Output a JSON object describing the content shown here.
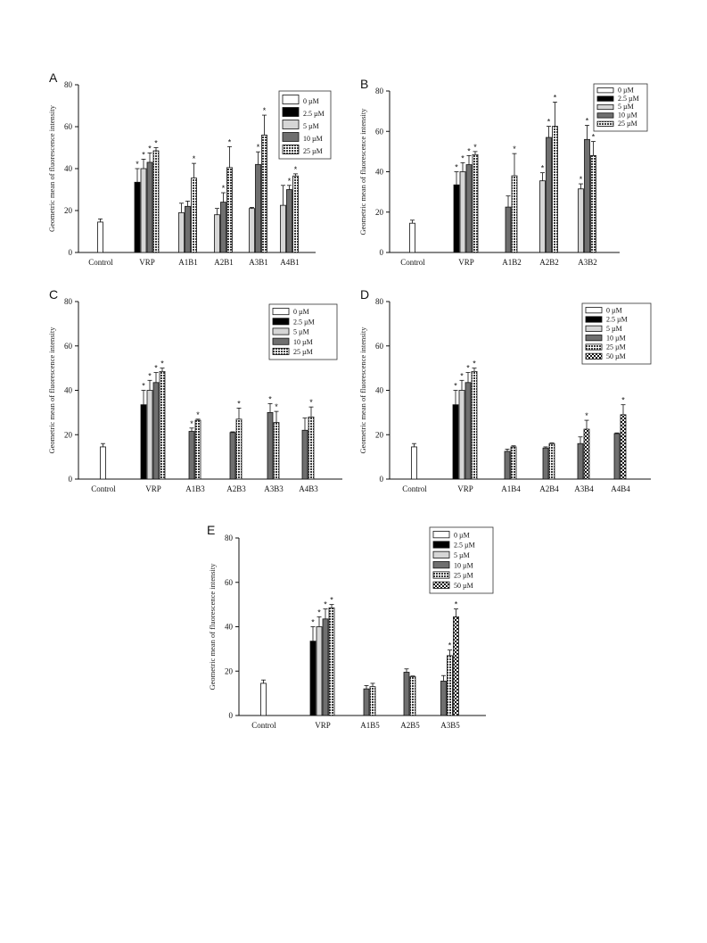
{
  "colors": {
    "c0": "#ffffff",
    "c2_5": "#000000",
    "c5": "#d6d6d6",
    "c10": "#6f6f6f",
    "c25": "pattern-dense-dots",
    "c50": "pattern-checker"
  },
  "chart_data": [
    {
      "type": "bar",
      "panel": "A",
      "ylabel": "Geometric mean of fluorescence intensity",
      "ylim": [
        0,
        80
      ],
      "yticks": [
        0,
        20,
        40,
        60,
        80
      ],
      "legend_position": "top-right",
      "legend": [
        "0 µM",
        "2.5 µM",
        "5 µM",
        "10 µM",
        "25 µM"
      ],
      "categories": [
        "Control",
        "VRP",
        "A1B1",
        "A2B1",
        "A3B1",
        "A4B1"
      ],
      "groups": [
        [
          {
            "s": 0,
            "v": 14.5,
            "e": 1.5,
            "star": false
          }
        ],
        [
          {
            "s": 1,
            "v": 33.5,
            "e": 6.5,
            "star": true
          },
          {
            "s": 2,
            "v": 40,
            "e": 4.5,
            "star": true
          },
          {
            "s": 3,
            "v": 43,
            "e": 4.5,
            "star": true
          },
          {
            "s": 4,
            "v": 48.5,
            "e": 1.5,
            "star": true
          }
        ],
        [
          {
            "s": 2,
            "v": 19,
            "e": 4.5,
            "star": false
          },
          {
            "s": 3,
            "v": 22,
            "e": 2.5,
            "star": false
          },
          {
            "s": 4,
            "v": 35.5,
            "e": 7,
            "star": true
          }
        ],
        [
          {
            "s": 2,
            "v": 18,
            "e": 3,
            "star": false
          },
          {
            "s": 3,
            "v": 24,
            "e": 4.5,
            "star": true
          },
          {
            "s": 4,
            "v": 40.5,
            "e": 10,
            "star": true
          }
        ],
        [
          {
            "s": 2,
            "v": 21,
            "e": 0.5,
            "star": false
          },
          {
            "s": 3,
            "v": 42,
            "e": 6,
            "star": true
          },
          {
            "s": 4,
            "v": 56,
            "e": 9.5,
            "star": true
          }
        ],
        [
          {
            "s": 2,
            "v": 22.5,
            "e": 9.5,
            "star": false
          },
          {
            "s": 3,
            "v": 30,
            "e": 2,
            "star": true
          },
          {
            "s": 4,
            "v": 36.5,
            "e": 1,
            "star": true
          }
        ]
      ]
    },
    {
      "type": "bar",
      "panel": "B",
      "ylabel": "Geometric mean of fluorescence intensity",
      "ylim": [
        0,
        80
      ],
      "yticks": [
        0,
        20,
        40,
        60,
        80
      ],
      "legend_position": "top-right",
      "legend": [
        "0 µM",
        "2.5 µM",
        "5 µM",
        "10 µM",
        "25 µM"
      ],
      "categories": [
        "Control",
        "VRP",
        "A1B2",
        "A2B2",
        "A3B2"
      ],
      "groups": [
        [
          {
            "s": 0,
            "v": 14.5,
            "e": 1.5,
            "star": false
          }
        ],
        [
          {
            "s": 1,
            "v": 33.5,
            "e": 6.5,
            "star": true
          },
          {
            "s": 2,
            "v": 40,
            "e": 4.5,
            "star": true
          },
          {
            "s": 3,
            "v": 43.5,
            "e": 4.5,
            "star": true
          },
          {
            "s": 4,
            "v": 48.5,
            "e": 1.5,
            "star": true
          }
        ],
        [
          {
            "s": 3,
            "v": 22.5,
            "e": 5.5,
            "star": false
          },
          {
            "s": 4,
            "v": 38,
            "e": 11,
            "star": true
          }
        ],
        [
          {
            "s": 2,
            "v": 35.5,
            "e": 4,
            "star": true
          },
          {
            "s": 3,
            "v": 57,
            "e": 5.5,
            "star": true
          },
          {
            "s": 4,
            "v": 62.5,
            "e": 12,
            "star": true
          }
        ],
        [
          {
            "s": 2,
            "v": 31.5,
            "e": 2.5,
            "star": true
          },
          {
            "s": 3,
            "v": 56,
            "e": 7,
            "star": true
          },
          {
            "s": 4,
            "v": 48,
            "e": 7,
            "star": true
          }
        ]
      ]
    },
    {
      "type": "bar",
      "panel": "C",
      "ylabel": "Geometric mean of fluorescence intensity",
      "ylim": [
        0,
        80
      ],
      "yticks": [
        0,
        20,
        40,
        60,
        80
      ],
      "legend_position": "top-right",
      "legend": [
        "0 µM",
        "2.5 µM",
        "5 µM",
        "10 µM",
        "25 µM"
      ],
      "categories": [
        "Control",
        "VRP",
        "A1B3",
        "A2B3",
        "A3B3",
        "A4B3"
      ],
      "groups": [
        [
          {
            "s": 0,
            "v": 14.5,
            "e": 1.5,
            "star": false
          }
        ],
        [
          {
            "s": 1,
            "v": 33.5,
            "e": 6.5,
            "star": true
          },
          {
            "s": 2,
            "v": 40,
            "e": 4.5,
            "star": true
          },
          {
            "s": 3,
            "v": 43.5,
            "e": 4.5,
            "star": true
          },
          {
            "s": 4,
            "v": 48.5,
            "e": 1.5,
            "star": true
          }
        ],
        [
          {
            "s": 3,
            "v": 21.5,
            "e": 1.5,
            "star": true
          },
          {
            "s": 4,
            "v": 26.5,
            "e": 0.5,
            "star": true
          }
        ],
        [
          {
            "s": 3,
            "v": 21,
            "e": 0.3,
            "star": false
          },
          {
            "s": 4,
            "v": 27,
            "e": 5,
            "star": true
          }
        ],
        [
          {
            "s": 3,
            "v": 30,
            "e": 4,
            "star": true
          },
          {
            "s": 4,
            "v": 25.5,
            "e": 5,
            "star": true
          }
        ],
        [
          {
            "s": 3,
            "v": 22,
            "e": 5.5,
            "star": false
          },
          {
            "s": 4,
            "v": 28,
            "e": 4.5,
            "star": true
          }
        ]
      ]
    },
    {
      "type": "bar",
      "panel": "D",
      "ylabel": "Geometric mean of fluorescence intensity",
      "ylim": [
        0,
        80
      ],
      "yticks": [
        0,
        20,
        40,
        60,
        80
      ],
      "legend_position": "top-right",
      "legend": [
        "0 µM",
        "2.5 µM",
        "5 µM",
        "10 µM",
        "25 µM",
        "50 µM"
      ],
      "categories": [
        "Control",
        "VRP",
        "A1B4",
        "A2B4",
        "A3B4",
        "A4B4"
      ],
      "groups": [
        [
          {
            "s": 0,
            "v": 14.5,
            "e": 1.5,
            "star": false
          }
        ],
        [
          {
            "s": 1,
            "v": 33.5,
            "e": 6.5,
            "star": true
          },
          {
            "s": 2,
            "v": 40,
            "e": 4.5,
            "star": true
          },
          {
            "s": 3,
            "v": 43.5,
            "e": 4.5,
            "star": true
          },
          {
            "s": 4,
            "v": 48.5,
            "e": 1.5,
            "star": true
          }
        ],
        [
          {
            "s": 3,
            "v": 12.5,
            "e": 1,
            "star": false
          },
          {
            "s": 4,
            "v": 14.5,
            "e": 0.5,
            "star": false
          }
        ],
        [
          {
            "s": 3,
            "v": 14,
            "e": 0.5,
            "star": false
          },
          {
            "s": 4,
            "v": 16,
            "e": 0.3,
            "star": false
          }
        ],
        [
          {
            "s": 3,
            "v": 16,
            "e": 3,
            "star": false
          },
          {
            "s": 5,
            "v": 22.5,
            "e": 4,
            "star": true
          }
        ],
        [
          {
            "s": 3,
            "v": 20.5,
            "e": 0.3,
            "star": false
          },
          {
            "s": 5,
            "v": 29,
            "e": 4.5,
            "star": true
          }
        ]
      ]
    },
    {
      "type": "bar",
      "panel": "E",
      "ylabel": "Geometric mean of fluorescence intensity",
      "ylim": [
        0,
        80
      ],
      "yticks": [
        0,
        20,
        40,
        60,
        80
      ],
      "legend_position": "top-right",
      "legend": [
        "0 µM",
        "2.5 µM",
        "5 µM",
        "10 µM",
        "25 µM",
        "50 µM"
      ],
      "categories": [
        "Control",
        "VRP",
        "A1B5",
        "A2B5",
        "A3B5"
      ],
      "groups": [
        [
          {
            "s": 0,
            "v": 14.5,
            "e": 1.5,
            "star": false
          }
        ],
        [
          {
            "s": 1,
            "v": 33.5,
            "e": 6.5,
            "star": true
          },
          {
            "s": 2,
            "v": 40,
            "e": 4.5,
            "star": true
          },
          {
            "s": 3,
            "v": 43.5,
            "e": 4.5,
            "star": true
          },
          {
            "s": 4,
            "v": 48.5,
            "e": 1.5,
            "star": true
          }
        ],
        [
          {
            "s": 3,
            "v": 12,
            "e": 1.5,
            "star": false
          },
          {
            "s": 4,
            "v": 13,
            "e": 1.5,
            "star": false
          }
        ],
        [
          {
            "s": 3,
            "v": 19.5,
            "e": 1.5,
            "star": false
          },
          {
            "s": 4,
            "v": 17.5,
            "e": 0.3,
            "star": false
          }
        ],
        [
          {
            "s": 3,
            "v": 15.5,
            "e": 2.5,
            "star": false
          },
          {
            "s": 4,
            "v": 27,
            "e": 2.5,
            "star": true
          },
          {
            "s": 5,
            "v": 44.5,
            "e": 3.5,
            "star": true
          }
        ]
      ]
    }
  ]
}
